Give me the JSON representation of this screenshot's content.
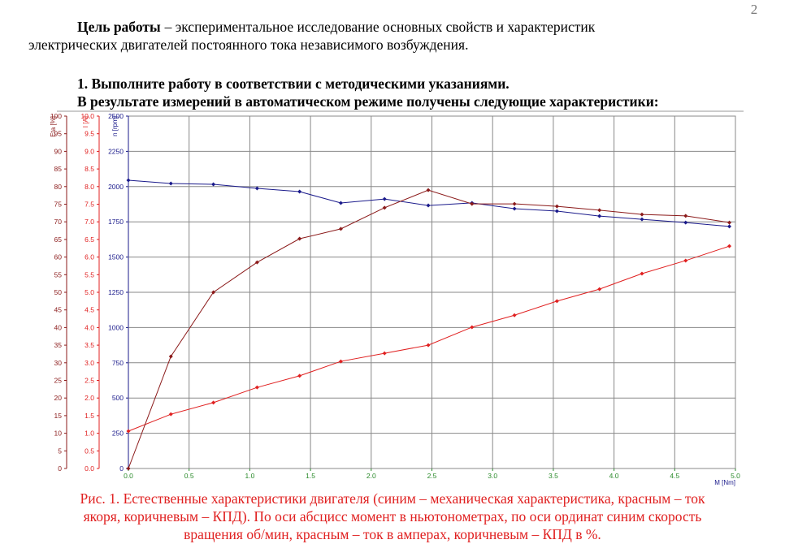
{
  "page_number": "2",
  "intro": {
    "bold": "Цель работы",
    "line1": "– экспериментальное исследование основных свойств и  характеристик",
    "line2": "электрических двигателей постоянного тока независимого возбуждения."
  },
  "heading": {
    "line1": "1. Выполните работу в соответствии с методическими указаниями.",
    "line2": "В результате измерений в автоматическом режиме получены следующие характеристики:"
  },
  "chart_data": {
    "type": "line",
    "x_label": "M [Nm]",
    "xlim": [
      0,
      5
    ],
    "xticks": [
      {
        "value": 0,
        "label": "0.0"
      },
      {
        "value": 0.5,
        "label": "0.5"
      },
      {
        "value": 1,
        "label": "1.0"
      },
      {
        "value": 1.5,
        "label": "1.5"
      },
      {
        "value": 2,
        "label": "2.0"
      },
      {
        "value": 2.5,
        "label": "2.5"
      },
      {
        "value": 3,
        "label": "3.0"
      },
      {
        "value": 3.5,
        "label": "3.5"
      },
      {
        "value": 4,
        "label": "4.0"
      },
      {
        "value": 4.5,
        "label": "4.5"
      },
      {
        "value": 5,
        "label": "5.0"
      }
    ],
    "grid": true,
    "axes": [
      {
        "label": "Eta [%]",
        "color": "#8b1a1a",
        "lim": [
          0,
          100
        ],
        "ticks": [
          0,
          5,
          10,
          15,
          20,
          25,
          30,
          35,
          40,
          45,
          50,
          55,
          60,
          65,
          70,
          75,
          80,
          85,
          90,
          95,
          100
        ]
      },
      {
        "label": "I [A]",
        "color": "#e02020",
        "lim": [
          0,
          10
        ],
        "ticks": [
          {
            "value": 0,
            "label": "0.0"
          },
          {
            "value": 0.5,
            "label": "0.5"
          },
          {
            "value": 1,
            "label": "1.0"
          },
          {
            "value": 1.5,
            "label": "1.5"
          },
          {
            "value": 2,
            "label": "2.0"
          },
          {
            "value": 2.5,
            "label": "2.5"
          },
          {
            "value": 3,
            "label": "3.0"
          },
          {
            "value": 3.5,
            "label": "3.5"
          },
          {
            "value": 4,
            "label": "4.0"
          },
          {
            "value": 4.5,
            "label": "4.5"
          },
          {
            "value": 5,
            "label": "5.0"
          },
          {
            "value": 5.5,
            "label": "5.5"
          },
          {
            "value": 6,
            "label": "6.0"
          },
          {
            "value": 6.5,
            "label": "6.5"
          },
          {
            "value": 7,
            "label": "7.0"
          },
          {
            "value": 7.5,
            "label": "7.5"
          },
          {
            "value": 8,
            "label": "8.0"
          },
          {
            "value": 8.5,
            "label": "8.5"
          },
          {
            "value": 9,
            "label": "9.0"
          },
          {
            "value": 9.5,
            "label": "9.5"
          },
          {
            "value": 10,
            "label": "10.0"
          }
        ]
      },
      {
        "label": "n [rpm]",
        "color": "#1a1a8b",
        "lim": [
          0,
          2500
        ],
        "ticks": [
          0,
          250,
          500,
          750,
          1000,
          1250,
          1500,
          1750,
          2000,
          2250,
          2500
        ]
      }
    ],
    "x": [
      0,
      0.35,
      0.7,
      1.06,
      1.41,
      1.75,
      2.11,
      2.47,
      2.83,
      3.18,
      3.53,
      3.88,
      4.23,
      4.59,
      4.95
    ],
    "series": [
      {
        "name": "n",
        "axis": 2,
        "color": "#1a1a8b",
        "values": [
          2045,
          2022,
          2016,
          1987,
          1964,
          1884,
          1912,
          1866,
          1884,
          1843,
          1826,
          1791,
          1768,
          1745,
          1717
        ]
      },
      {
        "name": "I",
        "axis": 1,
        "color": "#e02020",
        "values": [
          1.06,
          1.54,
          1.87,
          2.3,
          2.63,
          3.04,
          3.27,
          3.5,
          4.01,
          4.35,
          4.75,
          5.09,
          5.53,
          5.9,
          6.31
        ]
      },
      {
        "name": "Eta",
        "axis": 0,
        "color": "#8b1a1a",
        "values": [
          0,
          31.8,
          50,
          58.5,
          65.2,
          68,
          74,
          79,
          75.1,
          75.1,
          74.4,
          73.3,
          72.1,
          71.7,
          69.8
        ]
      }
    ]
  },
  "caption": [
    "Рис. 1. Естественные характеристики двигателя (синим – механическая характеристика, красным – ток",
    "якоря, коричневым – КПД). По оси абсцисс момент в ньютонометрах, по оси ординат синим скорость",
    "вращения об/мин, красным – ток в амперах, коричневым – КПД в %."
  ]
}
